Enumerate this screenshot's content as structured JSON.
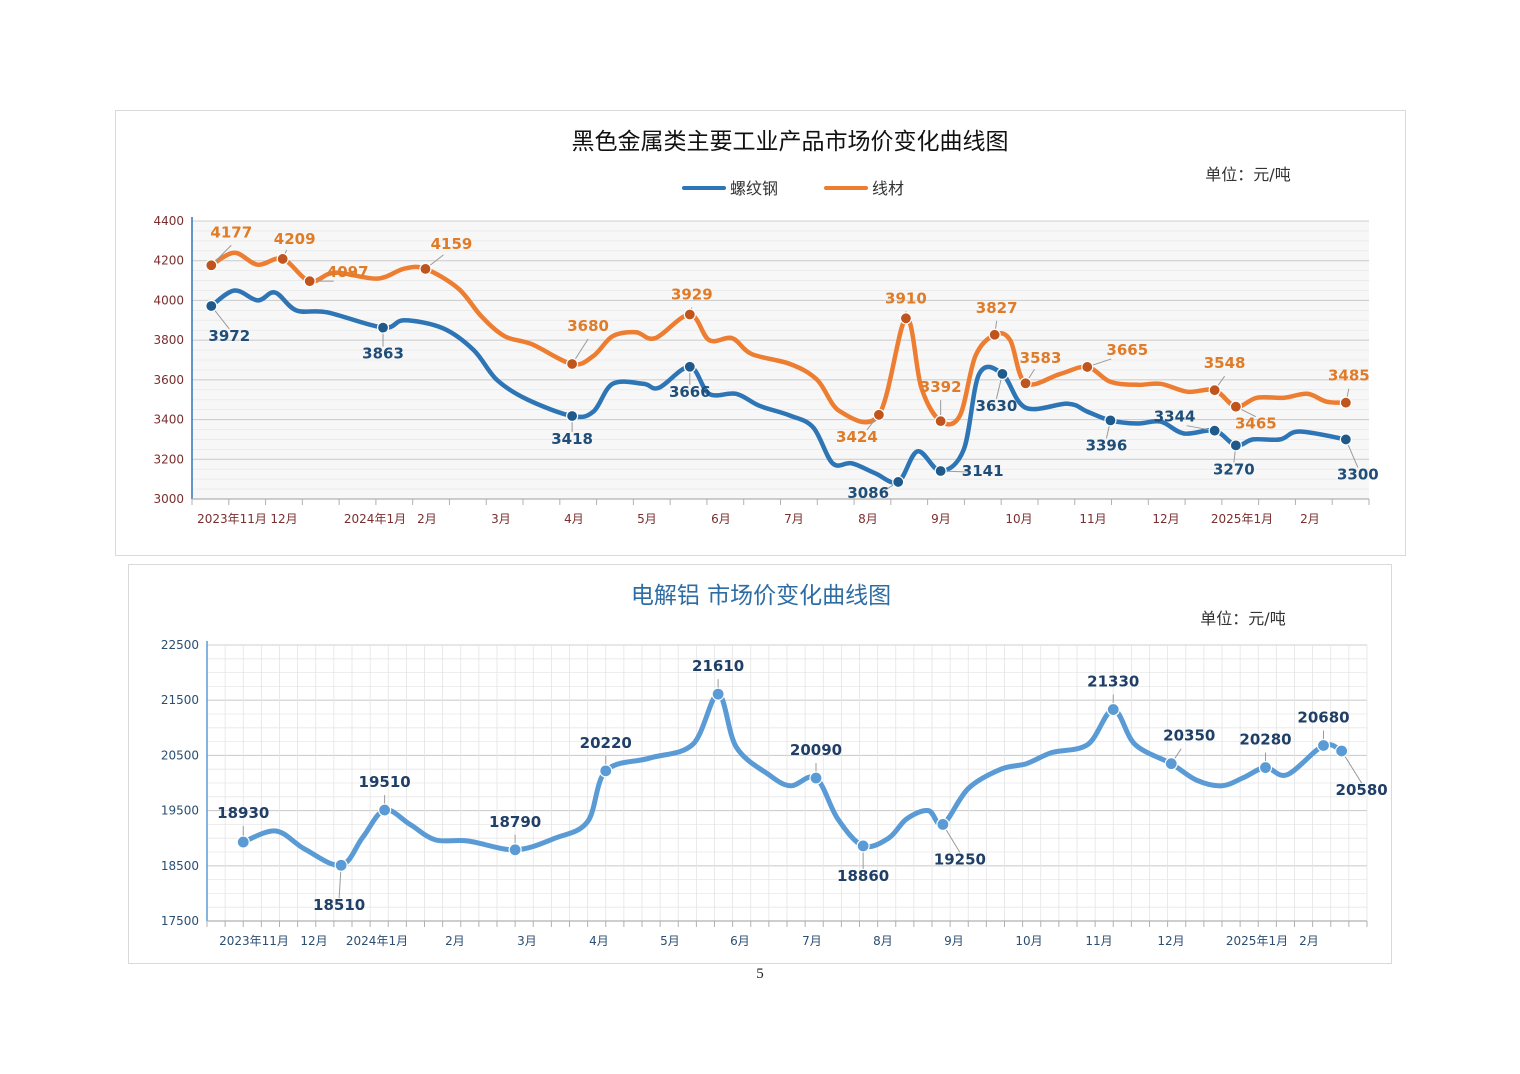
{
  "page_number": "5",
  "chart_data": [
    {
      "type": "line",
      "title": "黑色金属类主要工业产品市场价变化曲线图",
      "unit": "单位：元/吨",
      "legend_position": "top-center",
      "grid": true,
      "ylim": [
        3000,
        4400
      ],
      "yticks": [
        "3000",
        "3200",
        "3400",
        "3600",
        "3800",
        "4000",
        "4200",
        "4400"
      ],
      "x_tick_labels": [
        "2023年11月",
        "12月",
        "2024年1月",
        "2月",
        "3月",
        "4月",
        "5月",
        "6月",
        "7月",
        "8月",
        "9月",
        "10月",
        "11月",
        "12月",
        "2025年1月",
        "2月"
      ],
      "series": [
        {
          "name": "螺纹钢",
          "color": "#2e75b6",
          "labeled_points": [
            {
              "t": 0.0,
              "value": 3972,
              "label": "3972"
            },
            {
              "t": 4.45,
              "value": 3863,
              "label": "3863"
            },
            {
              "t": 9.35,
              "value": 3418,
              "label": "3418"
            },
            {
              "t": 12.4,
              "value": 3666,
              "label": "3666"
            },
            {
              "t": 17.8,
              "value": 3086,
              "label": "3086"
            },
            {
              "t": 18.9,
              "value": 3141,
              "label": "3141"
            },
            {
              "t": 20.5,
              "value": 3630,
              "label": "3630"
            },
            {
              "t": 23.3,
              "value": 3396,
              "label": "3396"
            },
            {
              "t": 26.0,
              "value": 3344,
              "label": "3344"
            },
            {
              "t": 26.55,
              "value": 3270,
              "label": "3270"
            },
            {
              "t": 29.4,
              "value": 3300,
              "label": "3300"
            }
          ],
          "path_points": [
            [
              0.0,
              3972
            ],
            [
              0.6,
              4050
            ],
            [
              1.2,
              4000
            ],
            [
              1.65,
              4040
            ],
            [
              2.2,
              3950
            ],
            [
              3.0,
              3940
            ],
            [
              4.45,
              3863
            ],
            [
              5.0,
              3900
            ],
            [
              6.0,
              3860
            ],
            [
              6.8,
              3750
            ],
            [
              7.4,
              3600
            ],
            [
              8.2,
              3500
            ],
            [
              9.35,
              3418
            ],
            [
              9.9,
              3440
            ],
            [
              10.4,
              3580
            ],
            [
              11.2,
              3580
            ],
            [
              11.6,
              3560
            ],
            [
              12.4,
              3666
            ],
            [
              12.9,
              3530
            ],
            [
              13.6,
              3530
            ],
            [
              14.2,
              3470
            ],
            [
              15.0,
              3420
            ],
            [
              15.6,
              3360
            ],
            [
              16.1,
              3180
            ],
            [
              16.6,
              3180
            ],
            [
              17.2,
              3130
            ],
            [
              17.8,
              3086
            ],
            [
              18.3,
              3240
            ],
            [
              18.9,
              3141
            ],
            [
              19.5,
              3250
            ],
            [
              19.9,
              3630
            ],
            [
              20.5,
              3630
            ],
            [
              21.1,
              3460
            ],
            [
              22.2,
              3480
            ],
            [
              22.7,
              3440
            ],
            [
              23.3,
              3396
            ],
            [
              24.0,
              3380
            ],
            [
              24.6,
              3390
            ],
            [
              25.2,
              3330
            ],
            [
              26.0,
              3344
            ],
            [
              26.55,
              3270
            ],
            [
              27.0,
              3300
            ],
            [
              27.7,
              3300
            ],
            [
              28.2,
              3340
            ],
            [
              29.4,
              3300
            ]
          ]
        },
        {
          "name": "线材",
          "color": "#ed7d31",
          "labeled_points": [
            {
              "t": 0.0,
              "value": 4177,
              "label": "4177"
            },
            {
              "t": 1.85,
              "value": 4209,
              "label": "4209"
            },
            {
              "t": 2.55,
              "value": 4097,
              "label": "4097"
            },
            {
              "t": 5.55,
              "value": 4159,
              "label": "4159"
            },
            {
              "t": 9.35,
              "value": 3680,
              "label": "3680"
            },
            {
              "t": 12.4,
              "value": 3929,
              "label": "3929"
            },
            {
              "t": 17.3,
              "value": 3424,
              "label": "3424"
            },
            {
              "t": 18.0,
              "value": 3910,
              "label": "3910"
            },
            {
              "t": 18.9,
              "value": 3392,
              "label": "3392"
            },
            {
              "t": 20.3,
              "value": 3827,
              "label": "3827"
            },
            {
              "t": 21.1,
              "value": 3583,
              "label": "3583"
            },
            {
              "t": 22.7,
              "value": 3665,
              "label": "3665"
            },
            {
              "t": 26.0,
              "value": 3548,
              "label": "3548"
            },
            {
              "t": 26.55,
              "value": 3465,
              "label": "3465"
            },
            {
              "t": 29.4,
              "value": 3485,
              "label": "3485"
            }
          ],
          "path_points": [
            [
              0.0,
              4177
            ],
            [
              0.6,
              4240
            ],
            [
              1.2,
              4180
            ],
            [
              1.85,
              4209
            ],
            [
              2.55,
              4097
            ],
            [
              3.2,
              4140
            ],
            [
              4.3,
              4110
            ],
            [
              5.0,
              4160
            ],
            [
              5.55,
              4159
            ],
            [
              6.4,
              4060
            ],
            [
              7.0,
              3920
            ],
            [
              7.6,
              3820
            ],
            [
              8.3,
              3780
            ],
            [
              9.35,
              3680
            ],
            [
              9.9,
              3720
            ],
            [
              10.4,
              3820
            ],
            [
              11.0,
              3840
            ],
            [
              11.5,
              3810
            ],
            [
              12.4,
              3929
            ],
            [
              12.9,
              3800
            ],
            [
              13.5,
              3810
            ],
            [
              14.0,
              3730
            ],
            [
              15.0,
              3680
            ],
            [
              15.7,
              3600
            ],
            [
              16.3,
              3440
            ],
            [
              17.3,
              3424
            ],
            [
              18.0,
              3910
            ],
            [
              18.4,
              3560
            ],
            [
              18.9,
              3392
            ],
            [
              19.4,
              3420
            ],
            [
              19.8,
              3720
            ],
            [
              20.3,
              3827
            ],
            [
              20.7,
              3800
            ],
            [
              21.1,
              3583
            ],
            [
              22.0,
              3630
            ],
            [
              22.7,
              3665
            ],
            [
              23.3,
              3590
            ],
            [
              24.0,
              3575
            ],
            [
              24.6,
              3580
            ],
            [
              25.3,
              3540
            ],
            [
              26.0,
              3548
            ],
            [
              26.55,
              3465
            ],
            [
              27.1,
              3510
            ],
            [
              27.8,
              3510
            ],
            [
              28.4,
              3530
            ],
            [
              28.9,
              3490
            ],
            [
              29.4,
              3485
            ]
          ]
        }
      ]
    },
    {
      "type": "line",
      "title": "电解铝  市场价变化曲线图",
      "unit": "单位：元/吨",
      "grid": true,
      "ylim": [
        17500,
        22500
      ],
      "yticks": [
        "17500",
        "18500",
        "19500",
        "20500",
        "21500",
        "22500"
      ],
      "x_tick_labels": [
        "2023年11月",
        "12月",
        "2024年1月",
        "2月",
        "3月",
        "4月",
        "5月",
        "6月",
        "7月",
        "8月",
        "9月",
        "10月",
        "11月",
        "12月",
        "2025年1月",
        "2月"
      ],
      "series": [
        {
          "name": "电解铝",
          "color": "#5b9bd5",
          "labeled_points": [
            {
              "t": 0.0,
              "value": 18930,
              "label": "18930"
            },
            {
              "t": 2.7,
              "value": 18510,
              "label": "18510"
            },
            {
              "t": 3.9,
              "value": 19510,
              "label": "19510"
            },
            {
              "t": 7.5,
              "value": 18790,
              "label": "18790"
            },
            {
              "t": 10.0,
              "value": 20220,
              "label": "20220"
            },
            {
              "t": 13.1,
              "value": 21610,
              "label": "21610"
            },
            {
              "t": 15.8,
              "value": 20090,
              "label": "20090"
            },
            {
              "t": 17.1,
              "value": 18860,
              "label": "18860"
            },
            {
              "t": 19.3,
              "value": 19250,
              "label": "19250"
            },
            {
              "t": 24.0,
              "value": 21330,
              "label": "21330"
            },
            {
              "t": 25.6,
              "value": 20350,
              "label": "20350"
            },
            {
              "t": 28.2,
              "value": 20280,
              "label": "20280"
            },
            {
              "t": 29.8,
              "value": 20680,
              "label": "20680"
            },
            {
              "t": 30.3,
              "value": 20580,
              "label": "20580"
            }
          ],
          "path_points": [
            [
              0.0,
              18930
            ],
            [
              0.9,
              19130
            ],
            [
              1.7,
              18800
            ],
            [
              2.7,
              18510
            ],
            [
              3.3,
              19020
            ],
            [
              3.9,
              19510
            ],
            [
              4.6,
              19250
            ],
            [
              5.3,
              18970
            ],
            [
              6.2,
              18950
            ],
            [
              7.5,
              18790
            ],
            [
              8.6,
              19000
            ],
            [
              9.5,
              19300
            ],
            [
              10.0,
              20220
            ],
            [
              11.2,
              20450
            ],
            [
              12.4,
              20700
            ],
            [
              13.1,
              21610
            ],
            [
              13.6,
              20650
            ],
            [
              14.5,
              20150
            ],
            [
              15.1,
              19950
            ],
            [
              15.8,
              20090
            ],
            [
              16.4,
              19350
            ],
            [
              17.1,
              18860
            ],
            [
              17.8,
              19000
            ],
            [
              18.3,
              19350
            ],
            [
              18.9,
              19500
            ],
            [
              19.3,
              19250
            ],
            [
              20.0,
              19900
            ],
            [
              20.9,
              20250
            ],
            [
              21.6,
              20350
            ],
            [
              22.3,
              20550
            ],
            [
              23.3,
              20700
            ],
            [
              24.0,
              21330
            ],
            [
              24.6,
              20700
            ],
            [
              25.6,
              20350
            ],
            [
              26.3,
              20050
            ],
            [
              27.0,
              19950
            ],
            [
              27.6,
              20100
            ],
            [
              28.2,
              20280
            ],
            [
              28.8,
              20150
            ],
            [
              29.8,
              20680
            ],
            [
              30.3,
              20580
            ]
          ]
        }
      ]
    }
  ]
}
